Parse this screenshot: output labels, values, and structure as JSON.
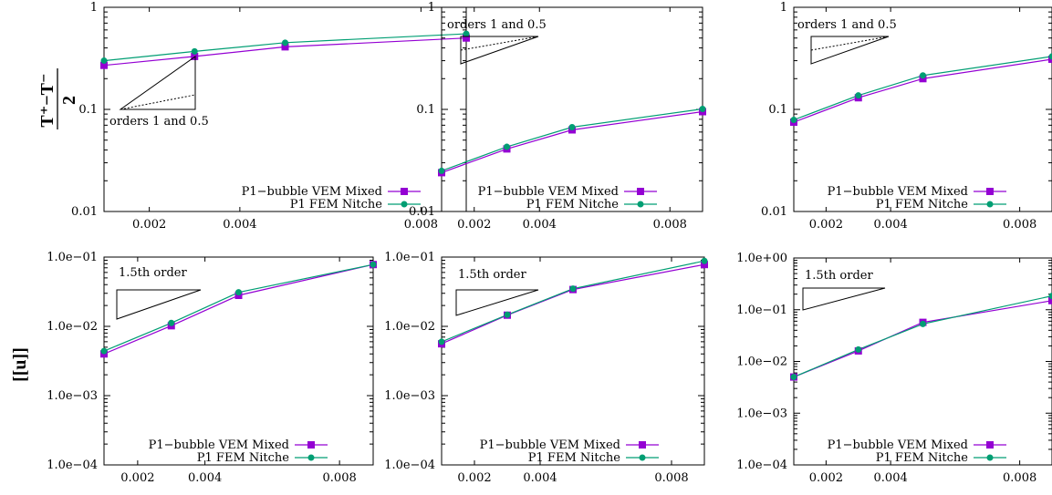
{
  "colors": {
    "vem": "#9400d3",
    "fem": "#009e73"
  },
  "row_labels": {
    "top": {
      "numerator": "T⁺−T⁻",
      "denominator": "2"
    },
    "bottom": "[[u]]"
  },
  "chart_data": [
    {
      "type": "line",
      "yscale": "log",
      "xlim": [
        0.001,
        0.009
      ],
      "ylim": [
        0.01,
        1
      ],
      "xticks": [
        "0.002",
        "0.004",
        "0.008"
      ],
      "yticks": [
        "0.01",
        "0.1",
        "1"
      ],
      "x": [
        0.001,
        0.003,
        0.005,
        0.009
      ],
      "series": [
        {
          "name": "P1−bubble VEM Mixed",
          "values": [
            0.27,
            0.33,
            0.41,
            0.5
          ]
        },
        {
          "name": "P1 FEM Nitche",
          "values": [
            0.3,
            0.37,
            0.45,
            0.55
          ]
        }
      ],
      "legend": "bottom-right",
      "annotation": "orders 1 and 0.5",
      "grid": false
    },
    {
      "type": "line",
      "yscale": "log",
      "xlim": [
        0.001,
        0.009
      ],
      "ylim": [
        0.01,
        1
      ],
      "xticks": [
        "0.002",
        "0.004",
        "0.008"
      ],
      "yticks": [
        "0.01",
        "0.1",
        "1"
      ],
      "x": [
        0.001,
        0.003,
        0.005,
        0.009
      ],
      "series": [
        {
          "name": "P1−bubble VEM Mixed",
          "values": [
            0.024,
            0.041,
            0.063,
            0.095
          ]
        },
        {
          "name": "P1 FEM Nitche",
          "values": [
            0.025,
            0.043,
            0.067,
            0.101
          ]
        }
      ],
      "legend": "bottom-right",
      "annotation": "orders 1 and 0.5",
      "grid": false
    },
    {
      "type": "line",
      "yscale": "log",
      "xlim": [
        0.001,
        0.009
      ],
      "ylim": [
        0.01,
        1
      ],
      "xticks": [
        "0.002",
        "0.004",
        "0.008"
      ],
      "yticks": [
        "0.01",
        "0.1",
        "1"
      ],
      "x": [
        0.001,
        0.003,
        0.005,
        0.009
      ],
      "series": [
        {
          "name": "P1−bubble VEM Mixed",
          "values": [
            0.075,
            0.13,
            0.2,
            0.31
          ]
        },
        {
          "name": "P1 FEM Nitche",
          "values": [
            0.079,
            0.137,
            0.215,
            0.33
          ]
        }
      ],
      "legend": "bottom-right",
      "annotation": "orders 1 and 0.5",
      "grid": false
    },
    {
      "type": "line",
      "yscale": "log",
      "xlim": [
        0.001,
        0.009
      ],
      "ylim": [
        0.0001,
        0.1
      ],
      "xticks": [
        "0.002",
        "0.004",
        "0.008"
      ],
      "yticks": [
        "1.0e−04",
        "1.0e−03",
        "1.0e−02",
        "1.0e−01"
      ],
      "x": [
        0.001,
        0.003,
        0.005,
        0.009
      ],
      "series": [
        {
          "name": "P1−bubble VEM Mixed",
          "values": [
            0.004,
            0.0102,
            0.028,
            0.078
          ]
        },
        {
          "name": "P1 FEM Nitche",
          "values": [
            0.0044,
            0.0112,
            0.031,
            0.078
          ]
        }
      ],
      "legend": "bottom-right",
      "annotation": "1.5th order",
      "grid": false
    },
    {
      "type": "line",
      "yscale": "log",
      "xlim": [
        0.001,
        0.009
      ],
      "ylim": [
        0.0001,
        0.1
      ],
      "xticks": [
        "0.002",
        "0.004",
        "0.008"
      ],
      "yticks": [
        "1.0e−04",
        "1.0e−03",
        "1.0e−02",
        "1.0e−01"
      ],
      "x": [
        0.001,
        0.003,
        0.005,
        0.009
      ],
      "series": [
        {
          "name": "P1−bubble VEM Mixed",
          "values": [
            0.0056,
            0.0145,
            0.034,
            0.078
          ]
        },
        {
          "name": "P1 FEM Nitche",
          "values": [
            0.006,
            0.0147,
            0.035,
            0.088
          ]
        }
      ],
      "legend": "bottom-right",
      "annotation": "1.5th order",
      "grid": false
    },
    {
      "type": "line",
      "yscale": "log",
      "xlim": [
        0.001,
        0.009
      ],
      "ylim": [
        0.0001,
        1
      ],
      "xticks": [
        "0.002",
        "0.004",
        "0.008"
      ],
      "yticks": [
        "1.0e−04",
        "1.0e−03",
        "1.0e−02",
        "1.0e−01",
        "1.0e+00"
      ],
      "x": [
        0.001,
        0.003,
        0.005,
        0.009
      ],
      "series": [
        {
          "name": "P1−bubble VEM Mixed",
          "values": [
            0.005,
            0.016,
            0.057,
            0.15
          ]
        },
        {
          "name": "P1 FEM Nitche",
          "values": [
            0.005,
            0.017,
            0.053,
            0.185
          ]
        }
      ],
      "legend": "bottom-right",
      "annotation": "1.5th order",
      "grid": false
    }
  ]
}
